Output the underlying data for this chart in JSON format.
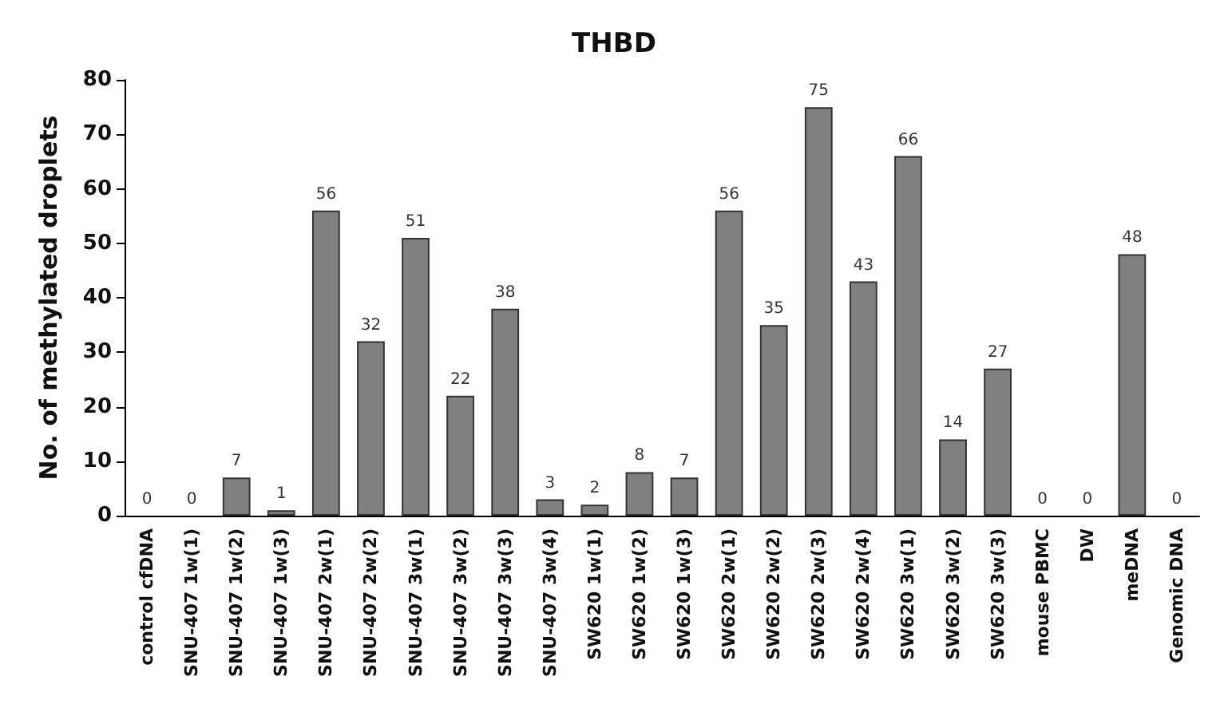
{
  "chart_data": {
    "type": "bar",
    "title": "THBD",
    "ylabel": "No. of methylated droplets",
    "categories": [
      "control cfDNA",
      "SNU-407 1w(1)",
      "SNU-407 1w(2)",
      "SNU-407 1w(3)",
      "SNU-407 2w(1)",
      "SNU-407 2w(2)",
      "SNU-407 3w(1)",
      "SNU-407 3w(2)",
      "SNU-407 3w(3)",
      "SNU-407 3w(4)",
      "SW620 1w(1)",
      "SW620 1w(2)",
      "SW620 1w(3)",
      "SW620 2w(1)",
      "SW620 2w(2)",
      "SW620 2w(3)",
      "SW620 2w(4)",
      "SW620 3w(1)",
      "SW620 3w(2)",
      "SW620 3w(3)",
      "mouse PBMC",
      "DW",
      "meDNA",
      "Genomic DNA"
    ],
    "values": [
      0,
      0,
      7,
      1,
      56,
      32,
      51,
      22,
      38,
      3,
      2,
      8,
      7,
      56,
      35,
      75,
      43,
      66,
      14,
      27,
      0,
      0,
      48,
      0
    ],
    "color": "#808080",
    "ylim": [
      0,
      80
    ],
    "yticks": [
      0,
      10,
      20,
      30,
      40,
      50,
      60,
      70,
      80
    ],
    "grid": false,
    "data_labels": true
  }
}
